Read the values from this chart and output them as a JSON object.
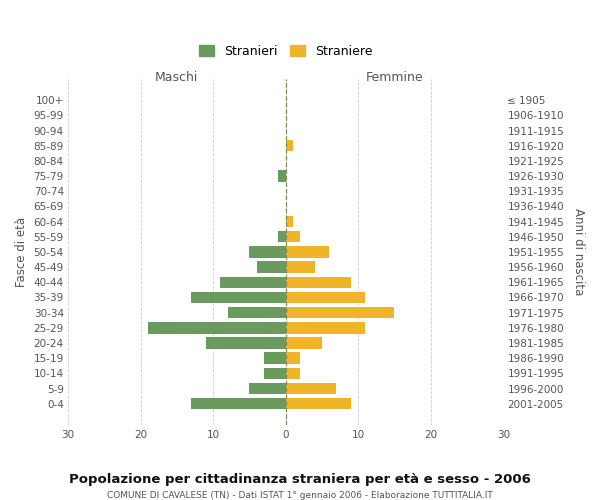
{
  "age_groups": [
    "0-4",
    "5-9",
    "10-14",
    "15-19",
    "20-24",
    "25-29",
    "30-34",
    "35-39",
    "40-44",
    "45-49",
    "50-54",
    "55-59",
    "60-64",
    "65-69",
    "70-74",
    "75-79",
    "80-84",
    "85-89",
    "90-94",
    "95-99",
    "100+"
  ],
  "birth_years": [
    "2001-2005",
    "1996-2000",
    "1991-1995",
    "1986-1990",
    "1981-1985",
    "1976-1980",
    "1971-1975",
    "1966-1970",
    "1961-1965",
    "1956-1960",
    "1951-1955",
    "1946-1950",
    "1941-1945",
    "1936-1940",
    "1931-1935",
    "1926-1930",
    "1921-1925",
    "1916-1920",
    "1911-1915",
    "1906-1910",
    "≤ 1905"
  ],
  "maschi": [
    13,
    5,
    3,
    3,
    11,
    19,
    8,
    13,
    9,
    4,
    5,
    1,
    0,
    0,
    0,
    1,
    0,
    0,
    0,
    0,
    0
  ],
  "femmine": [
    9,
    7,
    2,
    2,
    5,
    11,
    15,
    11,
    9,
    4,
    6,
    2,
    1,
    0,
    0,
    0,
    0,
    1,
    0,
    0,
    0
  ],
  "maschi_color": "#6a9a5e",
  "femmine_color": "#f0b429",
  "title": "Popolazione per cittadinanza straniera per età e sesso - 2006",
  "subtitle": "COMUNE DI CAVALESE (TN) - Dati ISTAT 1° gennaio 2006 - Elaborazione TUTTITALIA.IT",
  "label_left": "Maschi",
  "label_right": "Femmine",
  "ylabel_left": "Fasce di età",
  "ylabel_right": "Anni di nascita",
  "legend_maschi": "Stranieri",
  "legend_femmine": "Straniere",
  "xlim": 30,
  "xticks": [
    -30,
    -20,
    -10,
    0,
    10,
    20,
    30
  ],
  "xtick_labels": [
    "30",
    "20",
    "10",
    "0",
    "10",
    "20",
    "30"
  ],
  "background_color": "#ffffff",
  "grid_color": "#cccccc",
  "bar_height": 0.75,
  "dpi": 100,
  "figsize": [
    6.0,
    5.0
  ]
}
